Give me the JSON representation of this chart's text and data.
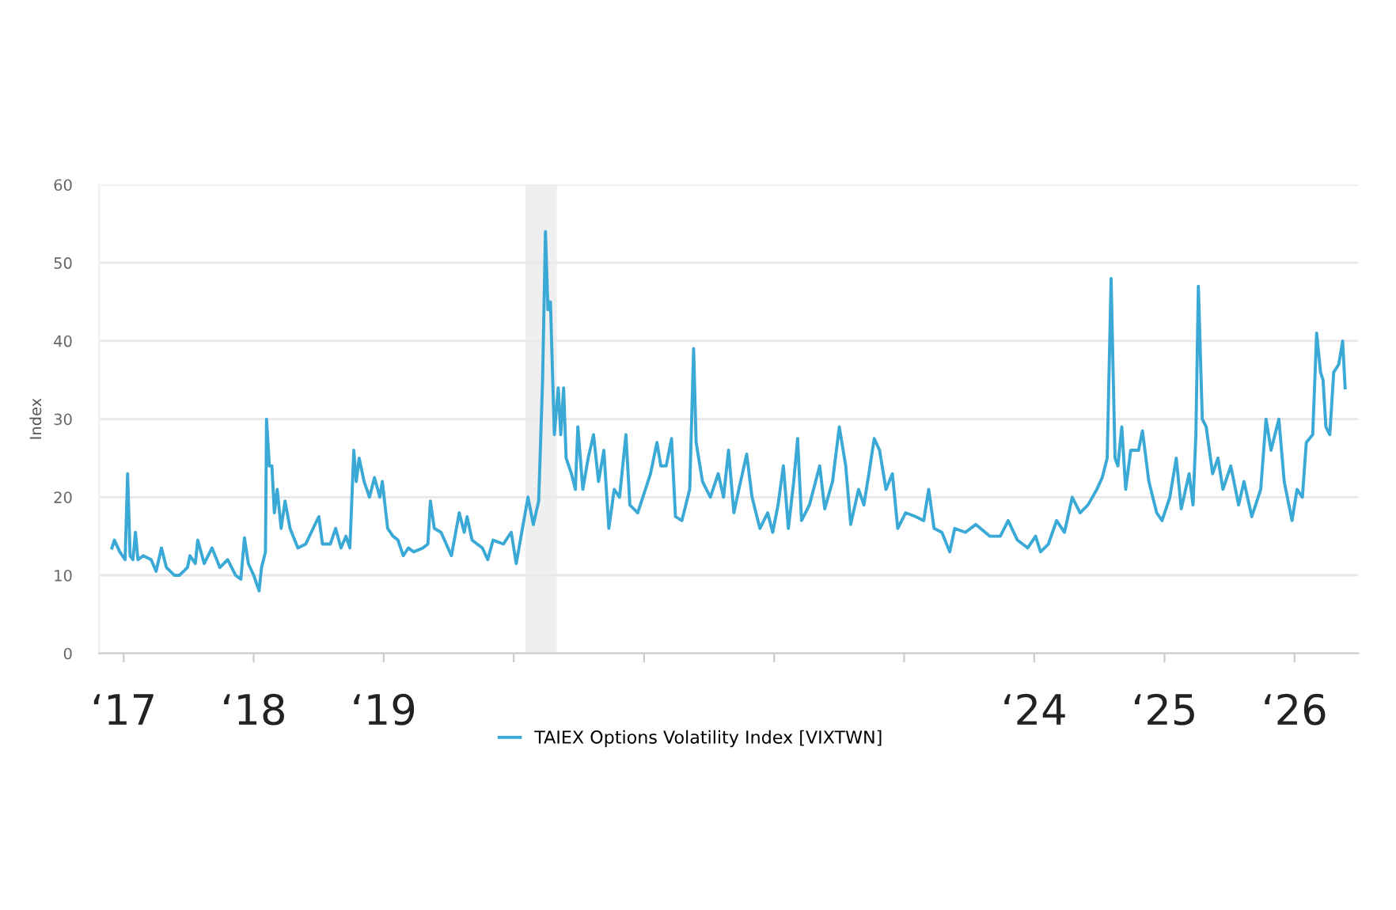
{
  "chart_data": {
    "type": "line",
    "ylabel": "Index",
    "xlim": [
      "2016-10-24",
      "2026-06-29"
    ],
    "ylim": [
      0,
      60
    ],
    "yticks": [
      0,
      10,
      20,
      30,
      40,
      50,
      60
    ],
    "xticks": [
      {
        "value": "2017-01-01",
        "label": "‘17"
      },
      {
        "value": "2018-01-01",
        "label": "‘18"
      },
      {
        "value": "2019-01-01",
        "label": "‘19"
      },
      {
        "value": "2020-01-01",
        "label": null
      },
      {
        "value": "2021-01-01",
        "label": null
      },
      {
        "value": "2022-01-01",
        "label": null
      },
      {
        "value": "2023-01-01",
        "label": null
      },
      {
        "value": "2024-01-01",
        "label": "‘24"
      },
      {
        "value": "2025-01-01",
        "label": "‘25"
      },
      {
        "value": "2026-01-01",
        "label": "‘26"
      }
    ],
    "grid": "y",
    "legend": "bottom",
    "marker": "none",
    "line_style": "solid",
    "bands": [
      {
        "axis": "x",
        "from": "2020-02-03",
        "to": "2020-05-01",
        "color": "#efefef"
      }
    ],
    "series": [
      {
        "name": "TAIEX Options Volatility Index [VIXTWN]",
        "color": "#3aa9d6",
        "x": [
          "2016-11-29",
          "2016-12-06",
          "2016-12-21",
          "2017-01-05",
          "2017-01-12",
          "2017-01-19",
          "2017-01-27",
          "2017-02-03",
          "2017-02-10",
          "2017-02-25",
          "2017-03-19",
          "2017-04-02",
          "2017-04-17",
          "2017-05-01",
          "2017-05-23",
          "2017-06-07",
          "2017-06-29",
          "2017-07-06",
          "2017-07-21",
          "2017-07-28",
          "2017-08-15",
          "2017-09-06",
          "2017-09-28",
          "2017-10-20",
          "2017-11-11",
          "2017-11-26",
          "2017-12-06",
          "2017-12-17",
          "2018-01-01",
          "2018-01-16",
          "2018-01-23",
          "2018-02-03",
          "2018-02-06",
          "2018-02-14",
          "2018-02-21",
          "2018-02-28",
          "2018-03-08",
          "2018-03-19",
          "2018-03-30",
          "2018-04-13",
          "2018-05-05",
          "2018-05-27",
          "2018-06-22",
          "2018-07-03",
          "2018-07-13",
          "2018-08-04",
          "2018-08-19",
          "2018-09-03",
          "2018-09-17",
          "2018-09-28",
          "2018-10-09",
          "2018-10-16",
          "2018-10-24",
          "2018-11-07",
          "2018-11-22",
          "2018-12-06",
          "2018-12-21",
          "2018-12-28",
          "2019-01-12",
          "2019-01-27",
          "2019-02-10",
          "2019-02-25",
          "2019-03-11",
          "2019-03-26",
          "2019-04-21",
          "2019-05-05",
          "2019-05-12",
          "2019-05-23",
          "2019-06-11",
          "2019-07-10",
          "2019-08-01",
          "2019-08-15",
          "2019-08-23",
          "2019-09-06",
          "2019-10-05",
          "2019-10-20",
          "2019-11-04",
          "2019-12-03",
          "2019-12-25",
          "2020-01-08",
          "2020-02-10",
          "2020-02-25",
          "2020-03-11",
          "2020-03-22",
          "2020-03-30",
          "2020-04-06",
          "2020-04-13",
          "2020-04-24",
          "2020-05-05",
          "2020-05-12",
          "2020-05-20",
          "2020-05-27",
          "2020-06-11",
          "2020-06-22",
          "2020-06-29",
          "2020-07-13",
          "2020-07-28",
          "2020-08-12",
          "2020-08-26",
          "2020-09-10",
          "2020-09-24",
          "2020-10-09",
          "2020-10-24",
          "2020-11-11",
          "2020-11-22",
          "2020-12-14",
          "2021-01-19",
          "2021-02-06",
          "2021-02-17",
          "2021-03-04",
          "2021-03-19",
          "2021-03-30",
          "2021-04-17",
          "2021-05-09",
          "2021-05-20",
          "2021-05-27",
          "2021-06-14",
          "2021-07-06",
          "2021-07-28",
          "2021-08-12",
          "2021-08-26",
          "2021-09-10",
          "2021-09-24",
          "2021-10-16",
          "2021-10-31",
          "2021-11-22",
          "2021-12-14",
          "2021-12-28",
          "2022-01-12",
          "2022-01-27",
          "2022-02-10",
          "2022-02-25",
          "2022-03-08",
          "2022-03-19",
          "2022-04-10",
          "2022-05-09",
          "2022-05-23",
          "2022-06-14",
          "2022-07-03",
          "2022-07-21",
          "2022-08-04",
          "2022-08-26",
          "2022-09-10",
          "2022-09-24",
          "2022-10-09",
          "2022-10-24",
          "2022-11-11",
          "2022-11-29",
          "2022-12-14",
          "2023-01-05",
          "2023-02-03",
          "2023-02-25",
          "2023-03-11",
          "2023-03-26",
          "2023-04-17",
          "2023-05-09",
          "2023-05-23",
          "2023-06-22",
          "2023-07-21",
          "2023-08-30",
          "2023-09-28",
          "2023-10-20",
          "2023-11-15",
          "2023-12-14",
          "2024-01-05",
          "2024-01-19",
          "2024-02-10",
          "2024-03-04",
          "2024-03-26",
          "2024-04-17",
          "2024-05-09",
          "2024-05-31",
          "2024-06-25",
          "2024-07-10",
          "2024-07-24",
          "2024-08-04",
          "2024-08-15",
          "2024-08-23",
          "2024-09-03",
          "2024-09-14",
          "2024-09-28",
          "2024-10-20",
          "2024-10-31",
          "2024-11-18",
          "2024-12-10",
          "2024-12-25",
          "2025-01-16",
          "2025-02-03",
          "2025-02-17",
          "2025-03-11",
          "2025-03-22",
          "2025-03-30",
          "2025-04-06",
          "2025-04-17",
          "2025-04-28",
          "2025-05-16",
          "2025-05-31",
          "2025-06-14",
          "2025-07-06",
          "2025-07-28",
          "2025-08-12",
          "2025-09-03",
          "2025-09-28",
          "2025-10-13",
          "2025-10-27",
          "2025-11-18",
          "2025-12-03",
          "2025-12-25",
          "2026-01-08",
          "2026-01-23",
          "2026-02-03",
          "2026-02-21",
          "2026-03-04",
          "2026-03-15",
          "2026-03-22",
          "2026-03-30",
          "2026-04-10",
          "2026-04-21",
          "2026-05-05",
          "2026-05-16",
          "2026-05-23"
        ],
        "values": [
          13.5,
          14.5,
          13,
          12,
          23,
          12.5,
          12,
          15.5,
          12,
          12.5,
          12,
          10.5,
          13.5,
          11,
          10,
          10,
          11,
          12.5,
          11.5,
          14.5,
          11.5,
          13.5,
          11,
          12,
          10,
          9.5,
          14.8,
          11.5,
          10,
          8,
          11,
          13,
          30,
          24,
          24,
          18,
          21,
          16,
          19.5,
          16,
          13.5,
          14,
          16.5,
          17.5,
          14,
          14,
          16,
          13.5,
          15,
          13.5,
          26,
          22,
          25,
          22,
          20,
          22.5,
          20,
          22,
          16,
          15,
          14.5,
          12.5,
          13.5,
          13,
          13.5,
          14,
          19.5,
          16,
          15.5,
          12.5,
          18,
          15.5,
          17.5,
          14.5,
          13.5,
          12,
          14.5,
          14,
          15.5,
          11.5,
          20,
          16.5,
          19.5,
          35,
          54,
          44,
          45,
          28,
          34,
          28,
          34,
          25,
          23,
          21,
          29,
          21,
          25,
          28,
          22,
          26,
          16,
          21,
          20,
          28,
          19,
          18,
          23,
          27,
          24,
          24,
          27.5,
          17.5,
          17,
          21,
          39,
          27,
          22,
          20,
          23,
          20,
          26,
          18,
          21,
          25.5,
          20,
          16,
          18,
          15.5,
          19,
          24,
          16,
          22,
          27.5,
          17,
          19,
          24,
          18.5,
          22,
          29,
          24,
          16.5,
          21,
          19,
          23,
          27.5,
          26,
          21,
          23,
          16,
          18,
          17.5,
          17,
          21,
          16,
          15.5,
          13,
          16,
          15.5,
          16.5,
          15,
          15,
          17,
          14.5,
          13.5,
          15,
          13,
          14,
          17,
          15.5,
          20,
          18,
          19,
          21,
          22.5,
          25,
          48,
          25,
          24,
          29,
          21,
          26,
          26,
          28.5,
          22,
          18,
          17,
          20,
          25,
          18.5,
          23,
          19,
          28,
          47,
          30,
          29,
          23,
          25,
          21,
          24,
          19,
          22,
          17.5,
          21,
          30,
          26,
          30,
          22,
          17,
          21,
          20,
          27,
          28,
          41,
          36,
          35,
          29,
          28,
          36,
          37,
          40,
          34
        ]
      }
    ]
  }
}
